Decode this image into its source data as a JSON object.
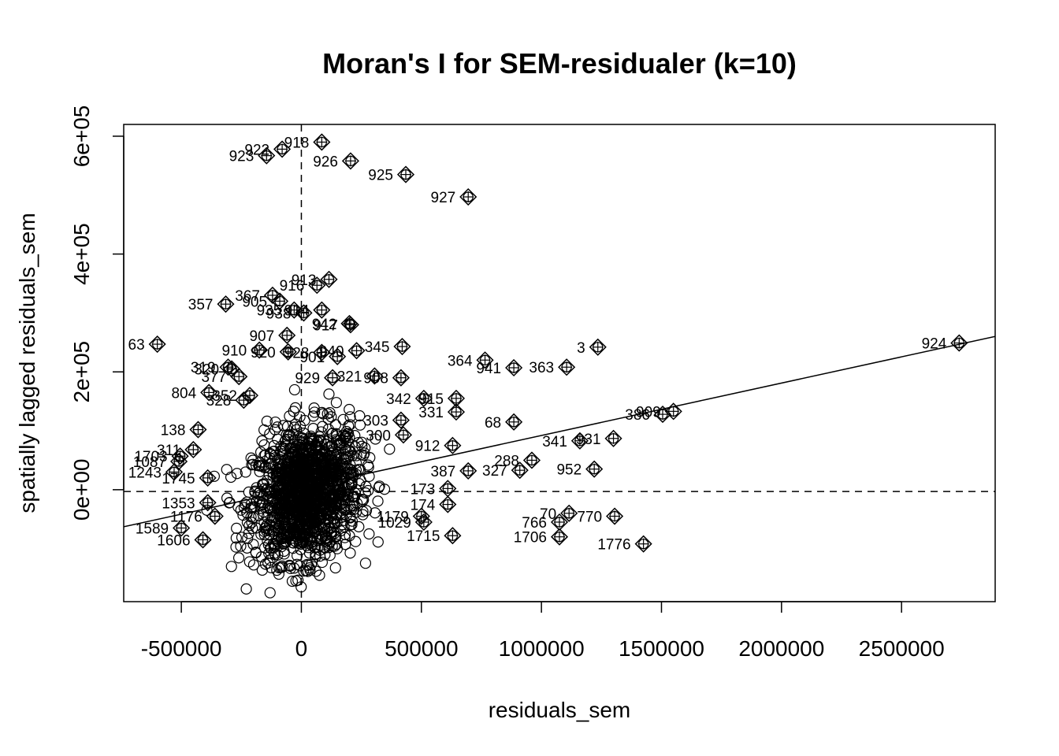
{
  "chart_data": {
    "type": "scatter",
    "title": "Moran's I for SEM-residualer (k=10)",
    "xlabel": "residuals_sem",
    "ylabel": "spatially lagged residuals_sem",
    "xlim": [
      -740000,
      2890000
    ],
    "ylim": [
      -190000,
      620000
    ],
    "xticks": [
      -500000,
      0,
      500000,
      1000000,
      1500000,
      2000000,
      2500000
    ],
    "xtick_labels": [
      "-500000",
      "0",
      "500000",
      "1000000",
      "1500000",
      "2000000",
      "2500000"
    ],
    "yticks": [
      0,
      200000,
      400000,
      600000
    ],
    "ytick_labels": [
      "0e+00",
      "2e+05",
      "4e+05",
      "6e+05"
    ],
    "mean_x": 0,
    "mean_y": -3000,
    "regression": {
      "intercept": 3000,
      "slope": 0.089
    },
    "influential_points": [
      {
        "label": "918",
        "x": 85000,
        "y": 590000
      },
      {
        "label": "922",
        "x": -80000,
        "y": 578000
      },
      {
        "label": "923",
        "x": -145000,
        "y": 567000
      },
      {
        "label": "926",
        "x": 205000,
        "y": 558000
      },
      {
        "label": "925",
        "x": 435000,
        "y": 535000
      },
      {
        "label": "927",
        "x": 695000,
        "y": 497000
      },
      {
        "label": "913",
        "x": 115000,
        "y": 357000
      },
      {
        "label": "916",
        "x": 65000,
        "y": 347000
      },
      {
        "label": "357",
        "x": -315000,
        "y": 315000
      },
      {
        "label": "367",
        "x": -120000,
        "y": 330000
      },
      {
        "label": "905",
        "x": -90000,
        "y": 320000
      },
      {
        "label": "935",
        "x": -30000,
        "y": 305000
      },
      {
        "label": "938",
        "x": 10000,
        "y": 300000
      },
      {
        "label": "914",
        "x": 85000,
        "y": 305000
      },
      {
        "label": "942",
        "x": 200000,
        "y": 282000
      },
      {
        "label": "917",
        "x": 205000,
        "y": 280000
      },
      {
        "label": "907",
        "x": -60000,
        "y": 262000
      },
      {
        "label": "63",
        "x": -600000,
        "y": 247000
      },
      {
        "label": "910",
        "x": -175000,
        "y": 237000
      },
      {
        "label": "920",
        "x": -55000,
        "y": 234000
      },
      {
        "label": "928",
        "x": 85000,
        "y": 233000
      },
      {
        "label": "940",
        "x": 230000,
        "y": 236000
      },
      {
        "label": "901",
        "x": 150000,
        "y": 226000
      },
      {
        "label": "345",
        "x": 420000,
        "y": 243000
      },
      {
        "label": "3",
        "x": 1235000,
        "y": 242000
      },
      {
        "label": "924",
        "x": 2740000,
        "y": 249000
      },
      {
        "label": "364",
        "x": 765000,
        "y": 220000
      },
      {
        "label": "941",
        "x": 885000,
        "y": 207000
      },
      {
        "label": "363",
        "x": 1105000,
        "y": 208000
      },
      {
        "label": "319",
        "x": -305000,
        "y": 208000
      },
      {
        "label": "320",
        "x": -290000,
        "y": 205000
      },
      {
        "label": "377",
        "x": -260000,
        "y": 192000
      },
      {
        "label": "929",
        "x": 130000,
        "y": 190000
      },
      {
        "label": "321",
        "x": 305000,
        "y": 193000
      },
      {
        "label": "908",
        "x": 415000,
        "y": 190000
      },
      {
        "label": "804",
        "x": -385000,
        "y": 165000
      },
      {
        "label": "352",
        "x": -215000,
        "y": 160000
      },
      {
        "label": "328",
        "x": -240000,
        "y": 152000
      },
      {
        "label": "342",
        "x": 510000,
        "y": 155000
      },
      {
        "label": "915",
        "x": 645000,
        "y": 155000
      },
      {
        "label": "331",
        "x": 645000,
        "y": 132000
      },
      {
        "label": "68",
        "x": 885000,
        "y": 115000
      },
      {
        "label": "386",
        "x": 1505000,
        "y": 128000
      },
      {
        "label": "909",
        "x": 1550000,
        "y": 133000
      },
      {
        "label": "303",
        "x": 415000,
        "y": 118000
      },
      {
        "label": "138",
        "x": -430000,
        "y": 102000
      },
      {
        "label": "300",
        "x": 425000,
        "y": 93000
      },
      {
        "label": "341",
        "x": 1160000,
        "y": 83000
      },
      {
        "label": "931",
        "x": 1300000,
        "y": 87000
      },
      {
        "label": "912",
        "x": 630000,
        "y": 75000
      },
      {
        "label": "311",
        "x": -450000,
        "y": 68000
      },
      {
        "label": "1703",
        "x": -505000,
        "y": 57000
      },
      {
        "label": "1087",
        "x": -510000,
        "y": 48000
      },
      {
        "label": "288",
        "x": 960000,
        "y": 50000
      },
      {
        "label": "952",
        "x": 1220000,
        "y": 35000
      },
      {
        "label": "387",
        "x": 695000,
        "y": 32000
      },
      {
        "label": "327",
        "x": 910000,
        "y": 33000
      },
      {
        "label": "1243",
        "x": -530000,
        "y": 30000
      },
      {
        "label": "1745",
        "x": -390000,
        "y": 20000
      },
      {
        "label": "173",
        "x": 610000,
        "y": 2000
      },
      {
        "label": "174",
        "x": 610000,
        "y": -25000
      },
      {
        "label": "1353",
        "x": -390000,
        "y": -22000
      },
      {
        "label": "1176",
        "x": -360000,
        "y": -45000
      },
      {
        "label": "1179",
        "x": 500000,
        "y": -45000
      },
      {
        "label": "1029",
        "x": 510000,
        "y": -55000
      },
      {
        "label": "70",
        "x": 1115000,
        "y": -40000
      },
      {
        "label": "770",
        "x": 1305000,
        "y": -45000
      },
      {
        "label": "766",
        "x": 1075000,
        "y": -55000
      },
      {
        "label": "1589",
        "x": -500000,
        "y": -65000
      },
      {
        "label": "1715",
        "x": 630000,
        "y": -78000
      },
      {
        "label": "1706",
        "x": 1075000,
        "y": -80000
      },
      {
        "label": "1606",
        "x": -410000,
        "y": -85000
      },
      {
        "label": "1776",
        "x": 1425000,
        "y": -92000
      }
    ]
  }
}
